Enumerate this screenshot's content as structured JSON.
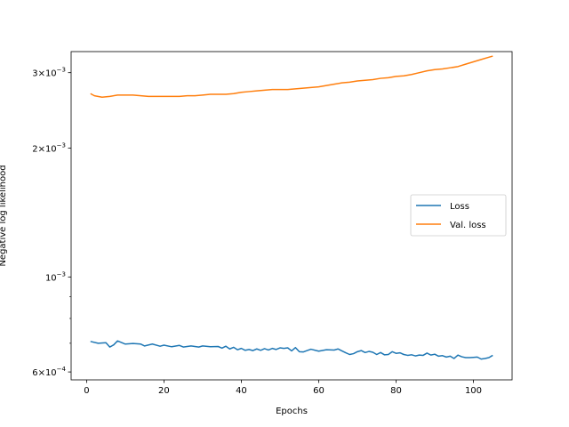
{
  "chart_data": {
    "type": "line",
    "title": "",
    "xlabel": "Epochs",
    "ylabel": "Negative log likelihood",
    "yscale": "log",
    "xlim": [
      -4,
      110
    ],
    "ylim": [
      0.000575,
      0.00336
    ],
    "grid": false,
    "legend_position": "center-right",
    "x_ticks": [
      {
        "value": 0,
        "label": "0"
      },
      {
        "value": 20,
        "label": "20"
      },
      {
        "value": 40,
        "label": "40"
      },
      {
        "value": 60,
        "label": "60"
      },
      {
        "value": 80,
        "label": "80"
      },
      {
        "value": 100,
        "label": "100"
      }
    ],
    "y_ticks": [
      {
        "value": 0.0006,
        "base": "6×10",
        "exp": "−4"
      },
      {
        "value": 0.001,
        "base": "10",
        "exp": "−3"
      },
      {
        "value": 0.002,
        "base": "2×10",
        "exp": "−3"
      },
      {
        "value": 0.003,
        "base": "3×10",
        "exp": "−3"
      }
    ],
    "y_minor_ticks": [
      0.0007,
      0.0008,
      0.0009
    ],
    "series": [
      {
        "name": "Loss",
        "color": "#1f77b4",
        "x": [
          1,
          3,
          5,
          6,
          7,
          8,
          10,
          12,
          14,
          15,
          17,
          19,
          20,
          22,
          24,
          25,
          27,
          29,
          30,
          32,
          34,
          35,
          36,
          37,
          38,
          39,
          40,
          41,
          42,
          43,
          44,
          45,
          46,
          47,
          48,
          49,
          50,
          51,
          52,
          53,
          54,
          55,
          56,
          57,
          58,
          60,
          62,
          64,
          65,
          66,
          67,
          68,
          69,
          70,
          71,
          72,
          73,
          74,
          75,
          76,
          77,
          78,
          79,
          80,
          81,
          82,
          83,
          84,
          85,
          86,
          87,
          88,
          89,
          90,
          91,
          92,
          93,
          94,
          95,
          96,
          97,
          98,
          99,
          100,
          101,
          102,
          103,
          104,
          105
        ],
        "y": [
          0.000707,
          0.0007,
          0.000702,
          0.000686,
          0.000694,
          0.000709,
          0.000697,
          0.000699,
          0.000697,
          0.00069,
          0.000697,
          0.000689,
          0.000693,
          0.000687,
          0.000692,
          0.000686,
          0.00069,
          0.000686,
          0.00069,
          0.000687,
          0.000688,
          0.000682,
          0.000689,
          0.000679,
          0.000685,
          0.000676,
          0.000681,
          0.000674,
          0.000677,
          0.000673,
          0.000679,
          0.000674,
          0.00068,
          0.000675,
          0.000681,
          0.000677,
          0.000683,
          0.000681,
          0.000683,
          0.000672,
          0.000684,
          0.000669,
          0.000668,
          0.000673,
          0.000678,
          0.000671,
          0.000676,
          0.000675,
          0.000679,
          0.000672,
          0.000665,
          0.000659,
          0.000662,
          0.000669,
          0.000673,
          0.000666,
          0.00067,
          0.000667,
          0.000659,
          0.000666,
          0.000658,
          0.000659,
          0.000669,
          0.000663,
          0.000665,
          0.000659,
          0.000656,
          0.000658,
          0.000654,
          0.000657,
          0.000656,
          0.000664,
          0.000657,
          0.00066,
          0.000653,
          0.000655,
          0.00065,
          0.000653,
          0.000645,
          0.000657,
          0.000651,
          0.000648,
          0.000648,
          0.000649,
          0.00065,
          0.000643,
          0.000645,
          0.000648,
          0.000656
        ]
      },
      {
        "name": "Val. loss",
        "color": "#ff7f0e",
        "x": [
          1,
          2,
          4,
          6,
          8,
          10,
          12,
          14,
          16,
          18,
          20,
          22,
          24,
          26,
          28,
          30,
          32,
          34,
          36,
          38,
          40,
          42,
          44,
          46,
          48,
          50,
          52,
          54,
          56,
          58,
          60,
          62,
          64,
          66,
          68,
          70,
          72,
          74,
          76,
          78,
          80,
          82,
          84,
          86,
          88,
          90,
          92,
          94,
          96,
          98,
          100,
          102,
          104,
          105
        ],
        "y": [
          0.00268,
          0.00265,
          0.00263,
          0.00264,
          0.00266,
          0.00266,
          0.00266,
          0.00265,
          0.00264,
          0.00264,
          0.00264,
          0.00264,
          0.00264,
          0.00265,
          0.00265,
          0.00266,
          0.00267,
          0.00267,
          0.00267,
          0.00268,
          0.0027,
          0.00271,
          0.00272,
          0.00273,
          0.00274,
          0.00274,
          0.00274,
          0.00275,
          0.00276,
          0.00277,
          0.00278,
          0.0028,
          0.00282,
          0.00284,
          0.00285,
          0.00287,
          0.00288,
          0.00289,
          0.00291,
          0.00292,
          0.00294,
          0.00295,
          0.00297,
          0.003,
          0.00303,
          0.00305,
          0.00306,
          0.00308,
          0.0031,
          0.00314,
          0.00318,
          0.00322,
          0.00326,
          0.00328
        ]
      }
    ]
  }
}
